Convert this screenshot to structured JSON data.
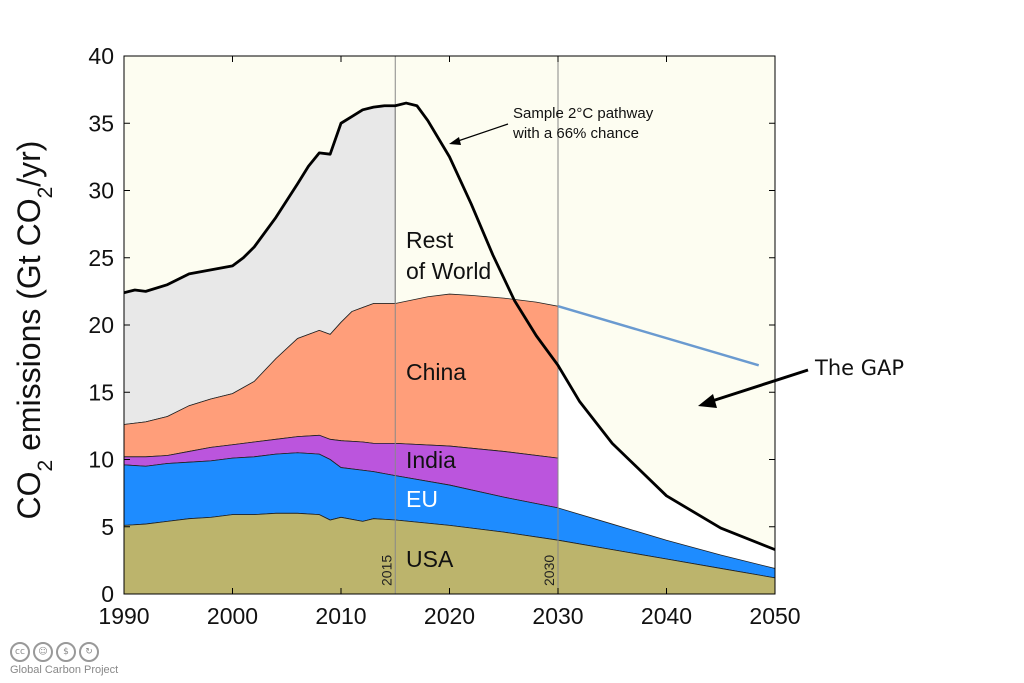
{
  "chart_data": {
    "type": "area",
    "title": "",
    "xlabel": "",
    "ylabel_parts": [
      "CO",
      "2",
      " emissions (Gt CO",
      "2",
      "/yr)"
    ],
    "xlim": [
      1990,
      2050
    ],
    "ylim": [
      0,
      40
    ],
    "x_ticks": [
      1990,
      2000,
      2010,
      2020,
      2030,
      2040,
      2050
    ],
    "y_ticks": [
      0,
      5,
      10,
      15,
      20,
      25,
      30,
      35,
      40
    ],
    "grid": false,
    "stacked": true,
    "series": [
      {
        "name": "USA",
        "color": "#bcb46c",
        "x": [
          1990,
          1992,
          1994,
          1996,
          1998,
          2000,
          2002,
          2004,
          2006,
          2008,
          2009,
          2010,
          2012,
          2013,
          2015,
          2020,
          2025,
          2030,
          2035,
          2040,
          2045,
          2050
        ],
        "cumulative": [
          5.1,
          5.2,
          5.4,
          5.6,
          5.7,
          5.9,
          5.9,
          6.0,
          6.0,
          5.9,
          5.5,
          5.7,
          5.4,
          5.6,
          5.5,
          5.1,
          4.6,
          4.0,
          3.3,
          2.6,
          1.9,
          1.2
        ]
      },
      {
        "name": "EU",
        "color": "#1e8cff",
        "x": [
          1990,
          1992,
          1994,
          1996,
          1998,
          2000,
          2002,
          2004,
          2006,
          2008,
          2009,
          2010,
          2012,
          2013,
          2015,
          2020,
          2025,
          2030,
          2035,
          2040,
          2045,
          2050
        ],
        "cumulative": [
          9.6,
          9.5,
          9.7,
          9.8,
          9.9,
          10.1,
          10.2,
          10.4,
          10.5,
          10.4,
          10.0,
          9.4,
          9.2,
          9.1,
          8.8,
          8.1,
          7.2,
          6.4,
          5.2,
          4.0,
          2.9,
          1.9
        ]
      },
      {
        "name": "India",
        "color": "#bb55dd",
        "x": [
          1990,
          1992,
          1994,
          1996,
          1998,
          2000,
          2002,
          2004,
          2006,
          2008,
          2009,
          2010,
          2012,
          2013,
          2015,
          2020,
          2025,
          2030
        ],
        "cumulative": [
          10.2,
          10.2,
          10.3,
          10.6,
          10.9,
          11.1,
          11.3,
          11.5,
          11.7,
          11.8,
          11.5,
          11.4,
          11.3,
          11.2,
          11.2,
          11.0,
          10.6,
          10.1
        ]
      },
      {
        "name": "China",
        "color": "#ff9e7a",
        "x": [
          1990,
          1992,
          1994,
          1996,
          1998,
          2000,
          2002,
          2004,
          2006,
          2008,
          2009,
          2010,
          2011,
          2012,
          2013,
          2015,
          2018,
          2020,
          2022,
          2025,
          2028,
          2030
        ],
        "cumulative": [
          12.6,
          12.8,
          13.2,
          14.0,
          14.5,
          14.9,
          15.8,
          17.5,
          19.0,
          19.6,
          19.3,
          20.2,
          21.0,
          21.3,
          21.6,
          21.6,
          22.1,
          22.3,
          22.2,
          22.0,
          21.7,
          21.4
        ]
      },
      {
        "name": "Rest of World",
        "color": "#e8e8e8",
        "x": [
          1990,
          1991,
          1992,
          1994,
          1996,
          1998,
          2000,
          2001,
          2002,
          2004,
          2006,
          2007,
          2008,
          2009,
          2010,
          2011,
          2012,
          2013,
          2014,
          2015
        ],
        "cumulative": [
          22.4,
          22.6,
          22.5,
          23.0,
          23.8,
          24.1,
          24.4,
          25.0,
          25.8,
          28.0,
          30.5,
          31.8,
          32.8,
          32.7,
          35.0,
          35.5,
          36.0,
          36.2,
          36.3,
          36.3
        ]
      },
      {
        "name": "Sample 2°C pathway with a 66% chance",
        "color": "#000000",
        "x": [
          1990,
          1991,
          1992,
          1994,
          1996,
          1998,
          2000,
          2001,
          2002,
          2004,
          2006,
          2007,
          2008,
          2009,
          2010,
          2011,
          2012,
          2013,
          2014,
          2015,
          2016,
          2017,
          2018,
          2020,
          2022,
          2024,
          2026,
          2028,
          2030,
          2032,
          2035,
          2040,
          2045,
          2050
        ],
        "values": [
          22.4,
          22.6,
          22.5,
          23.0,
          23.8,
          24.1,
          24.4,
          25.0,
          25.8,
          28.0,
          30.5,
          31.8,
          32.8,
          32.7,
          35.0,
          35.5,
          36.0,
          36.2,
          36.3,
          36.3,
          36.5,
          36.3,
          35.2,
          32.5,
          29.0,
          25.2,
          21.8,
          19.2,
          17.0,
          14.3,
          11.2,
          7.3,
          4.9,
          3.3
        ]
      }
    ],
    "vertical_markers": [
      2015,
      2030
    ],
    "region_labels": {
      "rest_line1": "Rest",
      "rest_line2": "of World",
      "china": "China",
      "india": "India",
      "eu": "EU",
      "usa": "USA"
    },
    "annotations": {
      "pathway_line1": "Sample 2°C pathway",
      "pathway_line2": "with a 66% chance",
      "gap": "The GAP"
    },
    "colors": {
      "plot_bg": "#fdfdf1",
      "gap_fill": "#ffffff",
      "gap_line": "#6a9ad0",
      "axis": "#000000"
    }
  },
  "footer": {
    "credit": "Global Carbon Project",
    "license_icons": [
      "cc-icon",
      "by-icon",
      "nc-icon",
      "sa-icon"
    ]
  }
}
